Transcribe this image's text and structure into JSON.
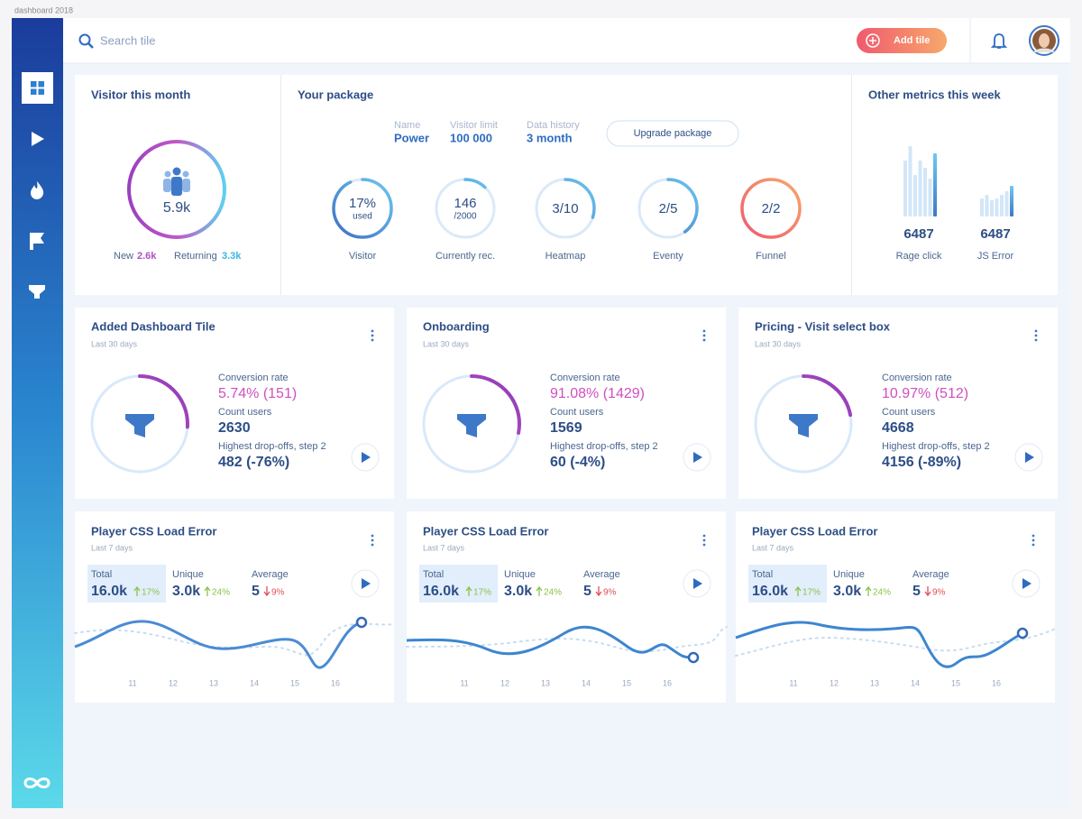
{
  "window_title": "dashboard 2018",
  "search_placeholder": "Search tile",
  "add_tile": "Add tile",
  "visitor": {
    "title": "Visitor this month",
    "total": "5.9k",
    "new_label": "New",
    "new_value": "2.6k",
    "returning_label": "Returning",
    "returning_value": "3.3k"
  },
  "package": {
    "title": "Your package",
    "fields": [
      {
        "label": "Name",
        "value": "Power"
      },
      {
        "label": "Visitor limit",
        "value": "100 000"
      },
      {
        "label": "Data history",
        "value": "3 month"
      }
    ],
    "upgrade": "Upgrade package",
    "gauges": [
      {
        "main": "17%",
        "sub": "used",
        "label": "Visitor"
      },
      {
        "main": "146",
        "sub": "/2000",
        "label": "Currently rec."
      },
      {
        "main": "3/10",
        "label": "Heatmap"
      },
      {
        "main": "2/5",
        "label": "Eventy"
      },
      {
        "main": "2/2",
        "label": "Funnel"
      }
    ]
  },
  "other": {
    "title": "Other metrics this week",
    "metrics": [
      {
        "value": "6487",
        "label": "Rage click"
      },
      {
        "value": "6487",
        "label": "JS Error"
      }
    ]
  },
  "funnels": [
    {
      "title": "Added Dashboard Tile",
      "period": "Last 30 days",
      "conversion_label": "Conversion rate",
      "conversion": "5.74% (151)",
      "count_label": "Count users",
      "count": "2630",
      "drop_label": "Highest drop-offs, step 2",
      "drop": "482 (-76%)"
    },
    {
      "title": "Onboarding",
      "period": "Last 30 days",
      "conversion_label": "Conversion rate",
      "conversion": "91.08% (1429)",
      "count_label": "Count users",
      "count": "1569",
      "drop_label": "Highest drop-offs, step 2",
      "drop": "60 (-4%)"
    },
    {
      "title": "Pricing - Visit select box",
      "period": "Last 30 days",
      "conversion_label": "Conversion rate",
      "conversion": "10.97% (512)",
      "count_label": "Count users",
      "count": "4668",
      "drop_label": "Highest drop-offs, step 2",
      "drop": "4156 (-89%)"
    }
  ],
  "errors": [
    {
      "title": "Player CSS Load Error",
      "period": "Last 7 days",
      "total_label": "Total",
      "total": "16.0k",
      "total_change": "17%",
      "unique_label": "Unique",
      "unique": "3.0k",
      "unique_change": "24%",
      "average_label": "Average",
      "average": "5",
      "average_change": "9%",
      "x_labels": [
        "11",
        "12",
        "13",
        "14",
        "15",
        "16"
      ]
    },
    {
      "title": "Player CSS Load Error",
      "period": "Last 7 days",
      "total_label": "Total",
      "total": "16.0k",
      "total_change": "17%",
      "unique_label": "Unique",
      "unique": "3.0k",
      "unique_change": "24%",
      "average_label": "Average",
      "average": "5",
      "average_change": "9%",
      "x_labels": [
        "11",
        "12",
        "13",
        "14",
        "15",
        "16"
      ]
    },
    {
      "title": "Player CSS Load Error",
      "period": "Last 7 days",
      "total_label": "Total",
      "total": "16.0k",
      "total_change": "17%",
      "unique_label": "Unique",
      "unique": "3.0k",
      "unique_change": "24%",
      "average_label": "Average",
      "average": "5",
      "average_change": "9%",
      "x_labels": [
        "11",
        "12",
        "13",
        "14",
        "15",
        "16"
      ]
    }
  ]
}
